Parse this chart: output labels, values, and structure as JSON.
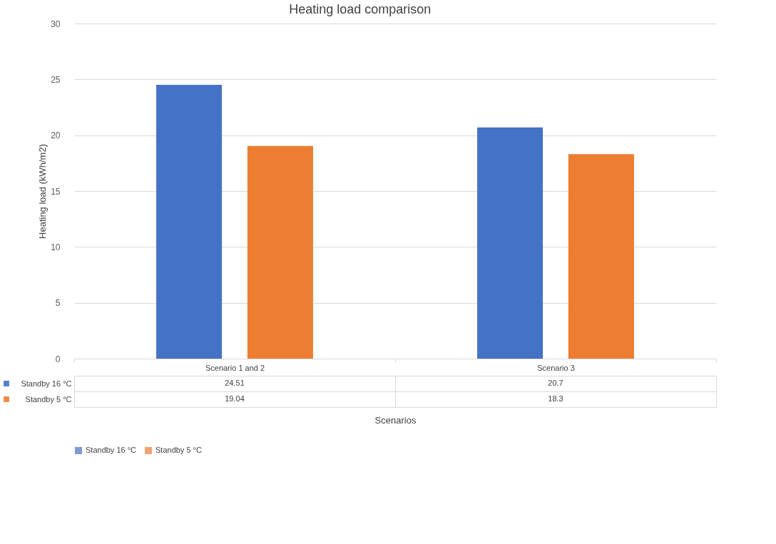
{
  "chart_data": {
    "type": "bar",
    "title": "Heating load comparison",
    "xlabel": "Scenarios",
    "ylabel": "Heating load (kWh/m2)",
    "categories": [
      "Scenario 1 and 2",
      "Scenario 3"
    ],
    "series": [
      {
        "name": "Standby 16 °C",
        "color": "#4472c4",
        "values": [
          24.51,
          20.7
        ]
      },
      {
        "name": "Standby 5 °C",
        "color": "#ed7d31",
        "values": [
          19.04,
          18.3
        ]
      }
    ],
    "ylim": [
      0,
      30
    ],
    "yticks": [
      0,
      5,
      10,
      15,
      20,
      25,
      30
    ],
    "grid": "y",
    "legend": "bottom",
    "data_labels": true
  }
}
